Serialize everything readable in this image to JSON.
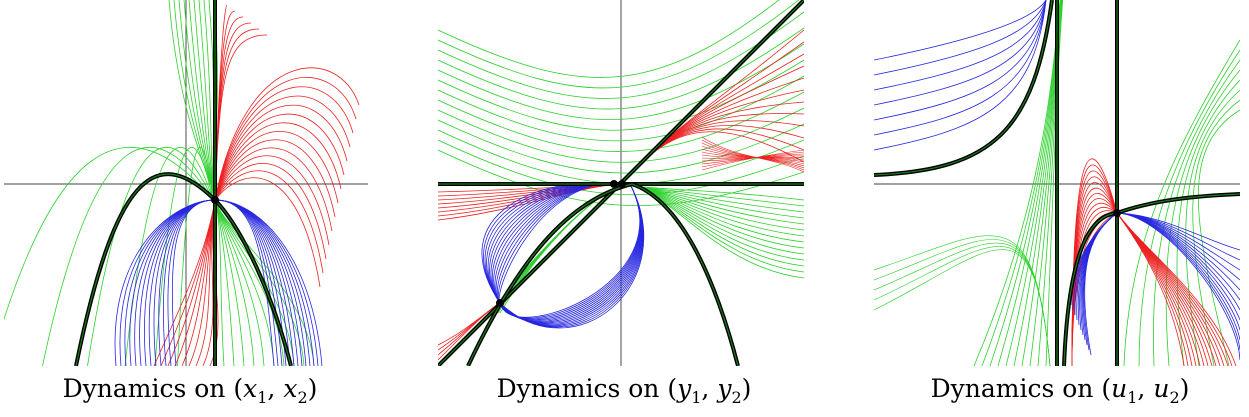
{
  "panels": [
    {
      "id": "x",
      "prefix": "Dynamics on ",
      "var": "x",
      "sub1": "1",
      "sub2": "2"
    },
    {
      "id": "y",
      "prefix": "Dynamics on ",
      "var": "y",
      "sub1": "1",
      "sub2": "2"
    },
    {
      "id": "u",
      "prefix": "Dynamics on ",
      "var": "u",
      "sub1": "1",
      "sub2": "2"
    }
  ],
  "colors": {
    "green": "#2bd12b",
    "red": "#ee2020",
    "blue": "#2626e0",
    "separatrix": "#000000",
    "separatrix_inner": "#1a7a1a",
    "axis": "#000000"
  }
}
